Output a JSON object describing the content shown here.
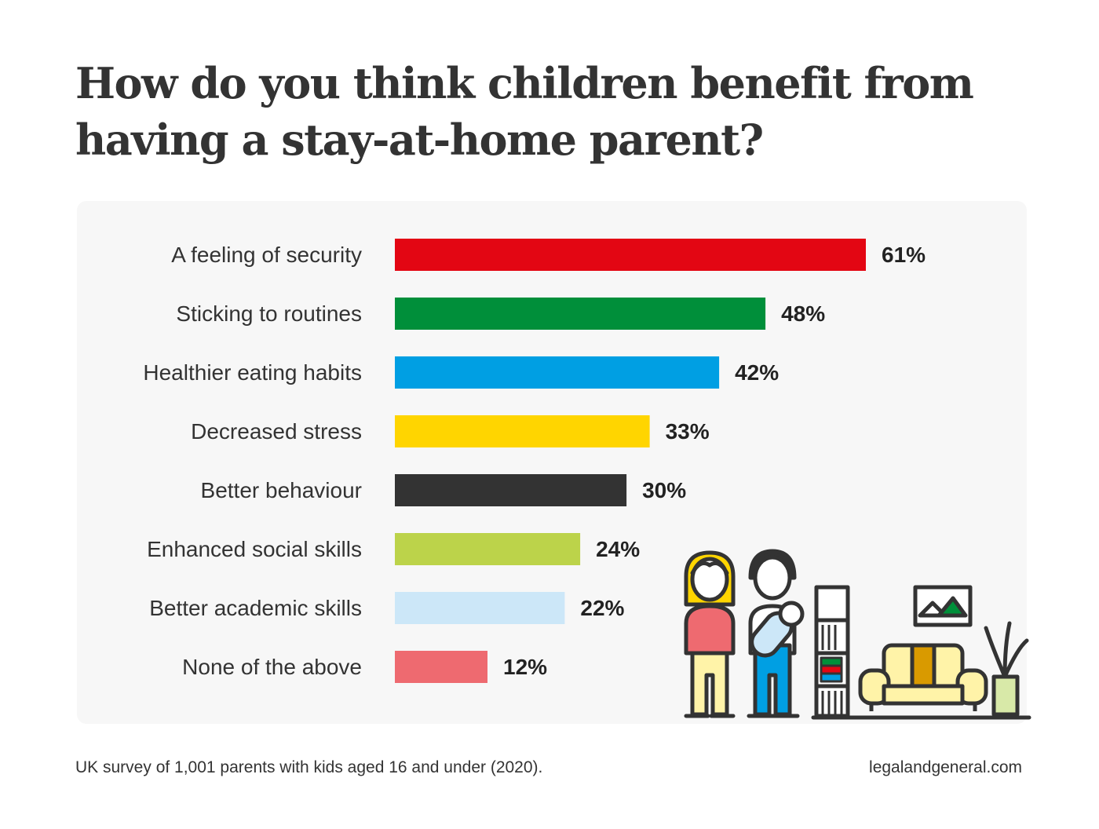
{
  "header": {
    "title_line1": "How do you think children benefit from",
    "title_line2": "having a stay-at-home parent?"
  },
  "chart_data": {
    "type": "bar",
    "orientation": "horizontal",
    "title": "How do you think children benefit from having a stay-at-home parent?",
    "xlim": [
      0,
      100
    ],
    "grid": false,
    "legend": "none",
    "unit": "%",
    "categories": [
      "A feeling of security",
      "Sticking to routines",
      "Healthier eating habits",
      "Decreased stress",
      "Better behaviour",
      "Enhanced social skills",
      "Better academic skills",
      "None of the above"
    ],
    "values": [
      61,
      48,
      42,
      33,
      30,
      24,
      22,
      12
    ],
    "value_labels": [
      "61%",
      "48%",
      "42%",
      "33%",
      "30%",
      "24%",
      "22%",
      "12%"
    ],
    "colors": [
      "#e30613",
      "#008f3a",
      "#009fe3",
      "#ffd500",
      "#333333",
      "#bcd34a",
      "#cce7f8",
      "#ee6a70"
    ]
  },
  "footer": {
    "source": "UK survey of 1,001 parents with kids aged 16 and under (2020).",
    "site": "legalandgeneral.com"
  },
  "illustration": {
    "icon": "family-living-room-icon",
    "colors": {
      "outline": "#333333",
      "hair": "#ffd500",
      "top": "#ee6a70",
      "trousers": "#fff3a8",
      "shirt": "#ffffff",
      "jeans": "#009fe3",
      "baby": "#cce7f8",
      "sofa": "#fff3a8",
      "cushion": "#d99a00",
      "plant_pot": "#d8e9a8",
      "frame_hill": "#008f3a"
    }
  }
}
